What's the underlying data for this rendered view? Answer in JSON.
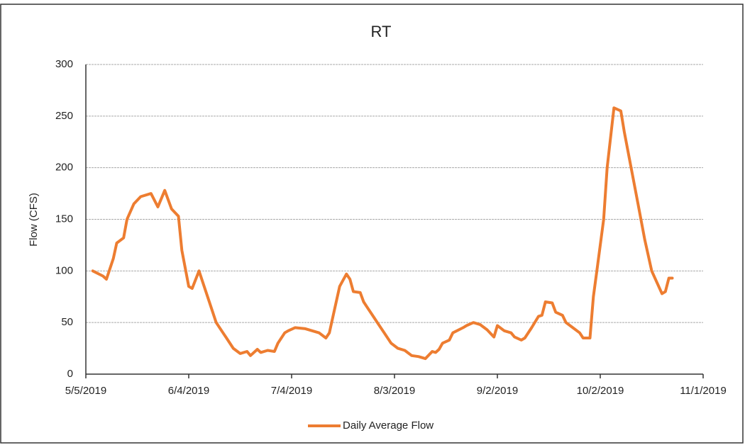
{
  "chart_data": {
    "type": "line",
    "title": "RT",
    "ylabel": "Flow (CFS)",
    "x": [
      "5/7/2019",
      "5/10/2019",
      "5/11/2019",
      "5/13/2019",
      "5/14/2019",
      "5/16/2019",
      "5/17/2019",
      "5/19/2019",
      "5/21/2019",
      "5/24/2019",
      "5/26/2019",
      "5/28/2019",
      "5/30/2019",
      "6/1/2019",
      "6/2/2019",
      "6/4/2019",
      "6/5/2019",
      "6/7/2019",
      "6/8/2019",
      "6/10/2019",
      "6/12/2019",
      "6/14/2019",
      "6/15/2019",
      "6/17/2019",
      "6/19/2019",
      "6/21/2019",
      "6/22/2019",
      "6/24/2019",
      "6/25/2019",
      "6/27/2019",
      "6/29/2019",
      "6/30/2019",
      "7/2/2019",
      "7/3/2019",
      "7/5/2019",
      "7/8/2019",
      "7/10/2019",
      "7/12/2019",
      "7/14/2019",
      "7/15/2019",
      "7/16/2019",
      "7/18/2019",
      "7/20/2019",
      "7/21/2019",
      "7/22/2019",
      "7/24/2019",
      "7/25/2019",
      "7/26/2019",
      "7/28/2019",
      "7/29/2019",
      "7/31/2019",
      "8/2/2019",
      "8/4/2019",
      "8/6/2019",
      "8/8/2019",
      "8/10/2019",
      "8/12/2019",
      "8/14/2019",
      "8/15/2019",
      "8/16/2019",
      "8/17/2019",
      "8/19/2019",
      "8/20/2019",
      "8/23/2019",
      "8/24/2019",
      "8/26/2019",
      "8/28/2019",
      "8/30/2019",
      "9/1/2019",
      "9/2/2019",
      "9/4/2019",
      "9/6/2019",
      "9/7/2019",
      "9/9/2019",
      "9/10/2019",
      "9/12/2019",
      "9/14/2019",
      "9/15/2019",
      "9/16/2019",
      "9/18/2019",
      "9/19/2019",
      "9/21/2019",
      "9/22/2019",
      "9/24/2019",
      "9/26/2019",
      "9/27/2019",
      "9/29/2019",
      "9/30/2019",
      "10/1/2019",
      "10/3/2019",
      "10/4/2019",
      "10/6/2019",
      "10/8/2019",
      "10/9/2019",
      "10/11/2019",
      "10/13/2019",
      "10/15/2019",
      "10/17/2019",
      "10/20/2019",
      "10/21/2019",
      "10/22/2019",
      "10/23/2019"
    ],
    "series": [
      {
        "name": "Daily Average Flow",
        "color": "#ed7d31",
        "values": [
          100,
          95,
          92,
          112,
          127,
          132,
          150,
          165,
          172,
          175,
          162,
          178,
          160,
          153,
          120,
          85,
          83,
          100,
          90,
          70,
          50,
          40,
          35,
          25,
          20,
          22,
          18,
          24,
          21,
          23,
          22,
          30,
          40,
          42,
          45,
          44,
          42,
          40,
          35,
          40,
          55,
          85,
          97,
          92,
          80,
          79,
          70,
          65,
          55,
          50,
          40,
          30,
          25,
          23,
          18,
          17,
          15,
          22,
          21,
          24,
          30,
          33,
          40,
          45,
          47,
          50,
          48,
          43,
          36,
          47,
          42,
          40,
          36,
          33,
          35,
          45,
          56,
          57,
          70,
          69,
          60,
          57,
          50,
          45,
          40,
          35,
          35,
          75,
          100,
          150,
          200,
          258,
          255,
          235,
          200,
          165,
          130,
          100,
          78,
          80,
          93,
          93
        ]
      }
    ],
    "xlim": [
      "5/5/2019",
      "11/1/2019"
    ],
    "xticks": [
      "5/5/2019",
      "6/4/2019",
      "7/4/2019",
      "8/3/2019",
      "9/2/2019",
      "10/2/2019",
      "11/1/2019"
    ],
    "ylim": [
      0,
      300
    ],
    "yticks": [
      0,
      50,
      100,
      150,
      200,
      250,
      300
    ],
    "grid": true,
    "legend": "bottom"
  }
}
